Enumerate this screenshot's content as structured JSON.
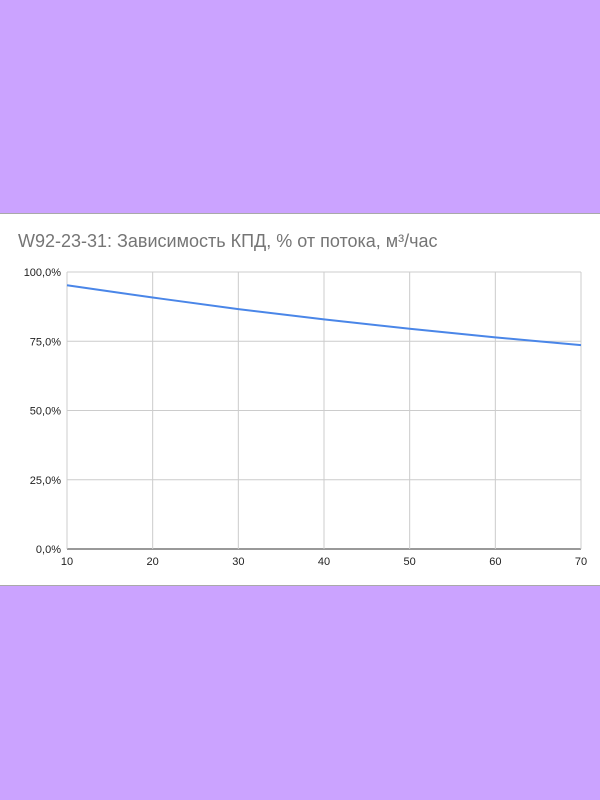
{
  "chart_data": {
    "type": "line",
    "title": "W92-23-31: Зависимость КПД, % от потока, м³/час",
    "xlabel": "",
    "ylabel": "",
    "xlim": [
      10,
      70
    ],
    "ylim": [
      0,
      100
    ],
    "x_ticks": [
      10,
      20,
      30,
      40,
      50,
      60,
      70
    ],
    "y_ticks": [
      0,
      25,
      50,
      75,
      100
    ],
    "y_tick_labels": [
      "0,0%",
      "25,0%",
      "50,0%",
      "75,0%",
      "100,0%"
    ],
    "grid": true,
    "legend": "none",
    "series": [
      {
        "color": "#4a86e8",
        "x": [
          10,
          20,
          30,
          40,
          50,
          60,
          70
        ],
        "y": [
          95.2,
          90.8,
          86.6,
          82.9,
          79.5,
          76.4,
          73.6
        ]
      }
    ]
  }
}
